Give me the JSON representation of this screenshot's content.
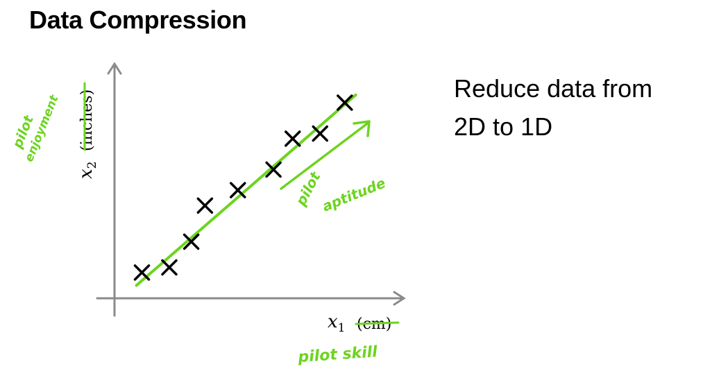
{
  "title": "Data Compression",
  "side_text": {
    "line1": "Reduce data from",
    "line2": "2D to 1D"
  },
  "axes": {
    "x_var": "x",
    "x_sub": "1",
    "x_unit": "(cm)",
    "y_var": "x",
    "y_sub": "2",
    "y_unit": "(inches)"
  },
  "annotations": {
    "x_new_label": "pilot skill",
    "y_new_label_line1": "pilot",
    "y_new_label_line2": "enjoyment",
    "line_label_line1": "pilot",
    "line_label_line2": "aptitude"
  },
  "colors": {
    "ink": "#000000",
    "axis": "#8a8a8a",
    "marker": "#6cd41f"
  },
  "chart_data": {
    "type": "scatter",
    "points": [
      {
        "x": 1.0,
        "y": 1.0
      },
      {
        "x": 2.0,
        "y": 1.2
      },
      {
        "x": 2.8,
        "y": 2.2
      },
      {
        "x": 3.3,
        "y": 3.6
      },
      {
        "x": 4.5,
        "y": 4.2
      },
      {
        "x": 5.8,
        "y": 5.0
      },
      {
        "x": 6.5,
        "y": 6.2
      },
      {
        "x": 7.5,
        "y": 6.4
      },
      {
        "x": 8.4,
        "y": 7.6
      }
    ],
    "fit_line": {
      "x": [
        0.8,
        8.8
      ],
      "y": [
        0.5,
        7.9
      ]
    },
    "xlim": [
      0,
      10
    ],
    "ylim": [
      0,
      9
    ]
  }
}
